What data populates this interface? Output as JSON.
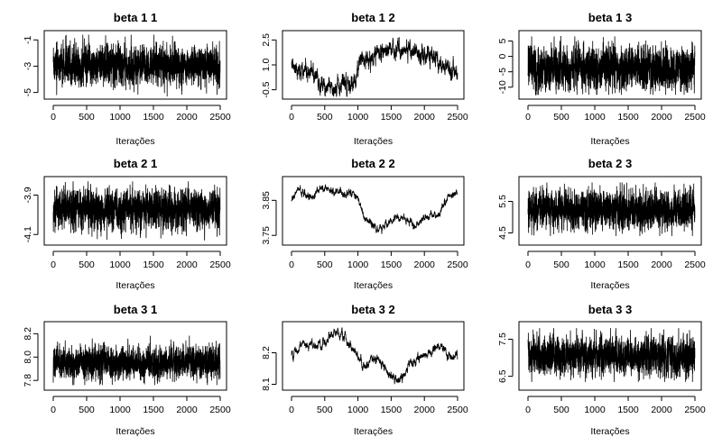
{
  "chart_data": [
    {
      "type": "line",
      "title": "beta 1 1",
      "xlabel": "Iterações",
      "ylabel": "",
      "xlim": [
        0,
        2500
      ],
      "ylim": [
        -5.3,
        -0.5
      ],
      "xticks": [
        0,
        500,
        1000,
        1500,
        2000,
        2500
      ],
      "yticks": [
        -1,
        -3,
        -5
      ],
      "grid": false,
      "series": [
        {
          "values_profile": {
            "n": 2500,
            "level": -2.9,
            "spread": 0.75,
            "ar": 0.3,
            "min": -5.3,
            "max": -0.6,
            "drift": []
          }
        }
      ]
    },
    {
      "type": "line",
      "title": "beta 1 2",
      "xlabel": "Iterações",
      "ylabel": "",
      "xlim": [
        0,
        2500
      ],
      "ylim": [
        -0.9,
        2.9
      ],
      "xticks": [
        0,
        500,
        1000,
        1500,
        2000,
        2500
      ],
      "yticks": [
        -0.5,
        1.0,
        2.5
      ],
      "grid": false,
      "series": [
        {
          "values_profile": {
            "n": 2500,
            "level": 0,
            "spread": 0.3,
            "ar": 0.85,
            "min": -0.9,
            "max": 2.9,
            "drift": [
              [
                0,
                0.9
              ],
              [
                250,
                0.6
              ],
              [
                500,
                -0.2
              ],
              [
                700,
                -0.3
              ],
              [
                950,
                0.0
              ],
              [
                1050,
                1.3
              ],
              [
                1300,
                1.6
              ],
              [
                1600,
                1.9
              ],
              [
                1900,
                1.8
              ],
              [
                2200,
                1.2
              ],
              [
                2500,
                0.6
              ]
            ]
          }
        }
      ]
    },
    {
      "type": "line",
      "title": "beta 1 3",
      "xlabel": "Iterações",
      "ylabel": "",
      "xlim": [
        0,
        2500
      ],
      "ylim": [
        -13.0,
        7.5
      ],
      "xticks": [
        0,
        500,
        1000,
        1500,
        2000,
        2500
      ],
      "yticks": [
        -10,
        -5,
        0,
        5
      ],
      "grid": false,
      "series": [
        {
          "values_profile": {
            "n": 2500,
            "level": -4,
            "spread": 3.5,
            "ar": 0.3,
            "min": -12.5,
            "max": 6.5,
            "drift": []
          }
        }
      ]
    },
    {
      "type": "line",
      "title": "beta 2 1",
      "xlabel": "Iterações",
      "ylabel": "",
      "xlim": [
        0,
        2500
      ],
      "ylim": [
        -4.14,
        -3.82
      ],
      "xticks": [
        0,
        500,
        1000,
        1500,
        2000,
        2500
      ],
      "yticks": [
        -3.9,
        -4.1
      ],
      "grid": false,
      "series": [
        {
          "values_profile": {
            "n": 2500,
            "level": -3.97,
            "spread": 0.05,
            "ar": 0.3,
            "min": -4.13,
            "max": -3.83,
            "drift": []
          }
        }
      ]
    },
    {
      "type": "line",
      "title": "beta 2 2",
      "xlabel": "Iterações",
      "ylabel": "",
      "xlim": [
        0,
        2500
      ],
      "ylim": [
        3.73,
        3.91
      ],
      "xticks": [
        0,
        500,
        1000,
        1500,
        2000,
        2500
      ],
      "yticks": [
        3.75,
        3.85
      ],
      "grid": false,
      "series": [
        {
          "values_profile": {
            "n": 2500,
            "level": 0,
            "spread": 0.006,
            "ar": 0.9,
            "min": 3.735,
            "max": 3.905,
            "drift": [
              [
                0,
                3.85
              ],
              [
                100,
                3.88
              ],
              [
                300,
                3.86
              ],
              [
                450,
                3.89
              ],
              [
                700,
                3.87
              ],
              [
                950,
                3.87
              ],
              [
                1100,
                3.8
              ],
              [
                1300,
                3.765
              ],
              [
                1500,
                3.79
              ],
              [
                1700,
                3.8
              ],
              [
                1850,
                3.775
              ],
              [
                2000,
                3.8
              ],
              [
                2200,
                3.81
              ],
              [
                2350,
                3.855
              ],
              [
                2500,
                3.875
              ]
            ]
          }
        }
      ]
    },
    {
      "type": "line",
      "title": "beta 2 3",
      "xlabel": "Iterações",
      "ylabel": "",
      "xlim": [
        0,
        2500
      ],
      "ylim": [
        4.2,
        6.2
      ],
      "xticks": [
        0,
        500,
        1000,
        1500,
        2000,
        2500
      ],
      "yticks": [
        4.5,
        5.5
      ],
      "grid": false,
      "series": [
        {
          "values_profile": {
            "n": 2500,
            "level": 5.25,
            "spread": 0.3,
            "ar": 0.3,
            "min": 4.4,
            "max": 6.1,
            "drift": []
          }
        }
      ]
    },
    {
      "type": "line",
      "title": "beta 3 1",
      "xlabel": "Iterações",
      "ylabel": "",
      "xlim": [
        0,
        2500
      ],
      "ylim": [
        7.74,
        8.28
      ],
      "xticks": [
        0,
        500,
        1000,
        1500,
        2000,
        2500
      ],
      "yticks": [
        7.8,
        8.0,
        8.2
      ],
      "grid": false,
      "series": [
        {
          "values_profile": {
            "n": 2500,
            "level": 7.95,
            "spread": 0.07,
            "ar": 0.3,
            "min": 7.76,
            "max": 8.26,
            "drift": []
          }
        }
      ]
    },
    {
      "type": "line",
      "title": "beta 3 2",
      "xlabel": "Iterações",
      "ylabel": "",
      "xlim": [
        0,
        2500
      ],
      "ylim": [
        8.09,
        8.29
      ],
      "xticks": [
        0,
        500,
        1000,
        1500,
        2000,
        2500
      ],
      "yticks": [
        8.1,
        8.2
      ],
      "grid": false,
      "series": [
        {
          "values_profile": {
            "n": 2500,
            "level": 0,
            "spread": 0.008,
            "ar": 0.9,
            "min": 8.095,
            "max": 8.28,
            "drift": [
              [
                0,
                8.19
              ],
              [
                200,
                8.23
              ],
              [
                400,
                8.22
              ],
              [
                700,
                8.265
              ],
              [
                900,
                8.22
              ],
              [
                1100,
                8.15
              ],
              [
                1300,
                8.19
              ],
              [
                1450,
                8.14
              ],
              [
                1600,
                8.105
              ],
              [
                1800,
                8.17
              ],
              [
                2000,
                8.19
              ],
              [
                2250,
                8.225
              ],
              [
                2400,
                8.18
              ],
              [
                2500,
                8.19
              ]
            ]
          }
        }
      ]
    },
    {
      "type": "line",
      "title": "beta 3 3",
      "xlabel": "Iterações",
      "ylabel": "",
      "xlim": [
        0,
        2500
      ],
      "ylim": [
        6.2,
        7.9
      ],
      "xticks": [
        0,
        500,
        1000,
        1500,
        2000,
        2500
      ],
      "yticks": [
        6.5,
        7.5
      ],
      "grid": false,
      "series": [
        {
          "values_profile": {
            "n": 2500,
            "level": 7.05,
            "spread": 0.25,
            "ar": 0.3,
            "min": 6.35,
            "max": 7.8,
            "drift": []
          }
        }
      ]
    }
  ]
}
